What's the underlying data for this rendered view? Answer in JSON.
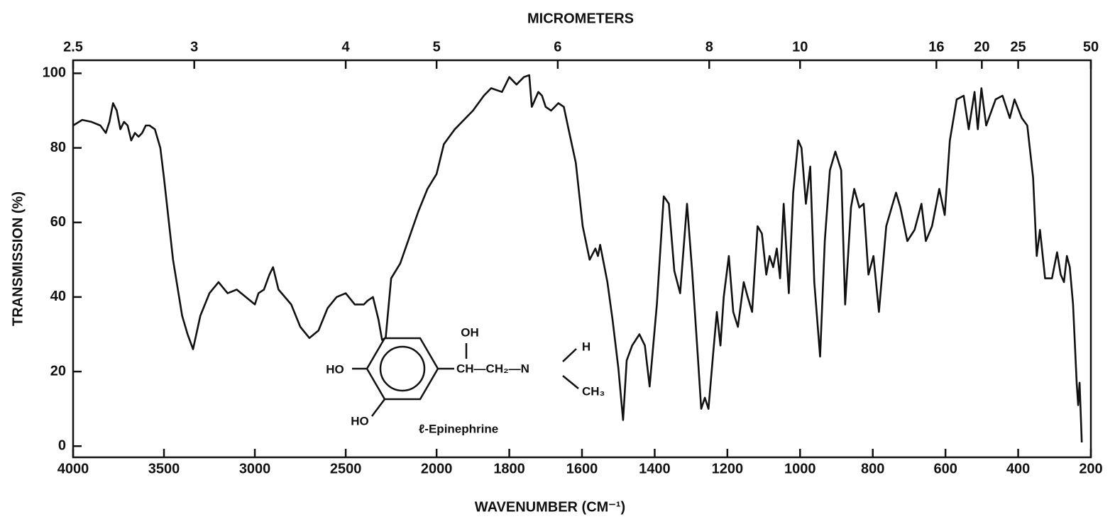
{
  "chart_data": {
    "type": "line",
    "x_axis_label": "WAVENUMBER (CM⁻¹)",
    "y_axis_label": "TRANSMISSION (%)",
    "x2_axis_label": "MICROMETERS",
    "xlim": [
      4000,
      200
    ],
    "x_scale_break": 2000,
    "xticks": [
      4000,
      3500,
      3000,
      2500,
      2000,
      1800,
      1600,
      1400,
      1200,
      1000,
      800,
      600,
      400,
      200
    ],
    "x2ticks": [
      2.5,
      3,
      4,
      5,
      6,
      8,
      10,
      16,
      20,
      25,
      50
    ],
    "ylim": [
      -3,
      103.5
    ],
    "yticks": [
      0,
      20,
      40,
      60,
      80,
      100
    ],
    "grid": false,
    "color": "#111111",
    "annotations": {
      "molecule": "ℓ-Epinephrine",
      "structure_labels": [
        "OH",
        "HO",
        "HO",
        "CH—CH₂—N",
        "H",
        "CH₃"
      ]
    },
    "x": [
      4000,
      3950,
      3900,
      3850,
      3820,
      3800,
      3780,
      3760,
      3740,
      3720,
      3700,
      3680,
      3660,
      3640,
      3620,
      3600,
      3580,
      3550,
      3520,
      3500,
      3450,
      3400,
      3370,
      3340,
      3300,
      3250,
      3200,
      3150,
      3100,
      3050,
      3000,
      2980,
      2950,
      2920,
      2900,
      2870,
      2800,
      2750,
      2700,
      2650,
      2600,
      2550,
      2500,
      2450,
      2400,
      2380,
      2350,
      2320,
      2300,
      2280,
      2250,
      2200,
      2150,
      2100,
      2050,
      2000,
      1980,
      1950,
      1900,
      1870,
      1850,
      1820,
      1800,
      1780,
      1760,
      1745,
      1738,
      1720,
      1710,
      1700,
      1685,
      1665,
      1650,
      1637,
      1617,
      1598,
      1579,
      1563,
      1556,
      1550,
      1530,
      1516,
      1500,
      1487,
      1477,
      1462,
      1442,
      1427,
      1414,
      1394,
      1375,
      1361,
      1346,
      1330,
      1311,
      1297,
      1282,
      1272,
      1262,
      1252,
      1239,
      1229,
      1219,
      1210,
      1196,
      1184,
      1171,
      1155,
      1144,
      1132,
      1117,
      1105,
      1093,
      1084,
      1074,
      1064,
      1055,
      1045,
      1031,
      1019,
      1005,
      996,
      984,
      972,
      961,
      945,
      932,
      918,
      903,
      887,
      876,
      860,
      851,
      837,
      825,
      812,
      798,
      783,
      763,
      748,
      736,
      724,
      705,
      685,
      666,
      654,
      637,
      617,
      602,
      588,
      569,
      550,
      536,
      520,
      511,
      501,
      488,
      462,
      443,
      423,
      410,
      390,
      375,
      359,
      349,
      340,
      326,
      307,
      293,
      283,
      274,
      266,
      258,
      249,
      239,
      235,
      231,
      225
    ],
    "values": [
      86,
      87.5,
      87,
      86,
      84,
      87,
      92,
      90,
      85,
      87,
      86,
      82,
      84,
      83,
      84,
      86,
      86,
      85,
      80,
      72,
      50,
      35,
      30,
      26,
      35,
      41,
      44,
      41,
      42,
      40,
      38,
      41,
      42,
      46,
      48,
      42,
      38,
      32,
      29,
      31,
      37,
      40,
      41,
      38,
      38,
      39,
      40,
      34,
      28.5,
      29,
      45,
      49,
      56,
      63,
      69,
      73,
      81,
      85,
      90,
      94,
      96,
      95,
      99,
      97,
      99,
      99.5,
      91,
      95,
      94,
      91,
      90,
      92,
      91,
      85,
      76,
      59,
      50,
      53,
      51,
      54,
      44,
      34,
      21,
      7,
      23,
      27,
      30,
      27,
      16,
      38,
      67,
      65,
      47,
      41,
      65,
      47,
      25,
      10,
      13,
      10,
      25,
      36,
      27,
      40,
      51,
      36,
      32,
      44,
      40,
      36,
      59,
      57,
      46,
      51,
      48,
      53,
      45,
      65,
      41,
      68,
      82,
      80,
      65,
      75,
      44,
      24,
      55,
      74,
      79,
      74,
      38,
      64,
      69,
      64,
      65,
      46,
      51,
      36,
      59,
      64,
      68,
      64,
      55,
      58,
      65,
      55,
      59,
      69,
      62,
      82,
      93,
      94,
      85,
      95,
      85,
      96,
      86,
      93,
      94,
      88,
      93,
      88,
      86,
      72,
      51,
      58,
      45,
      45,
      52,
      46,
      44,
      51,
      48,
      38,
      17,
      11,
      17,
      1
    ]
  }
}
